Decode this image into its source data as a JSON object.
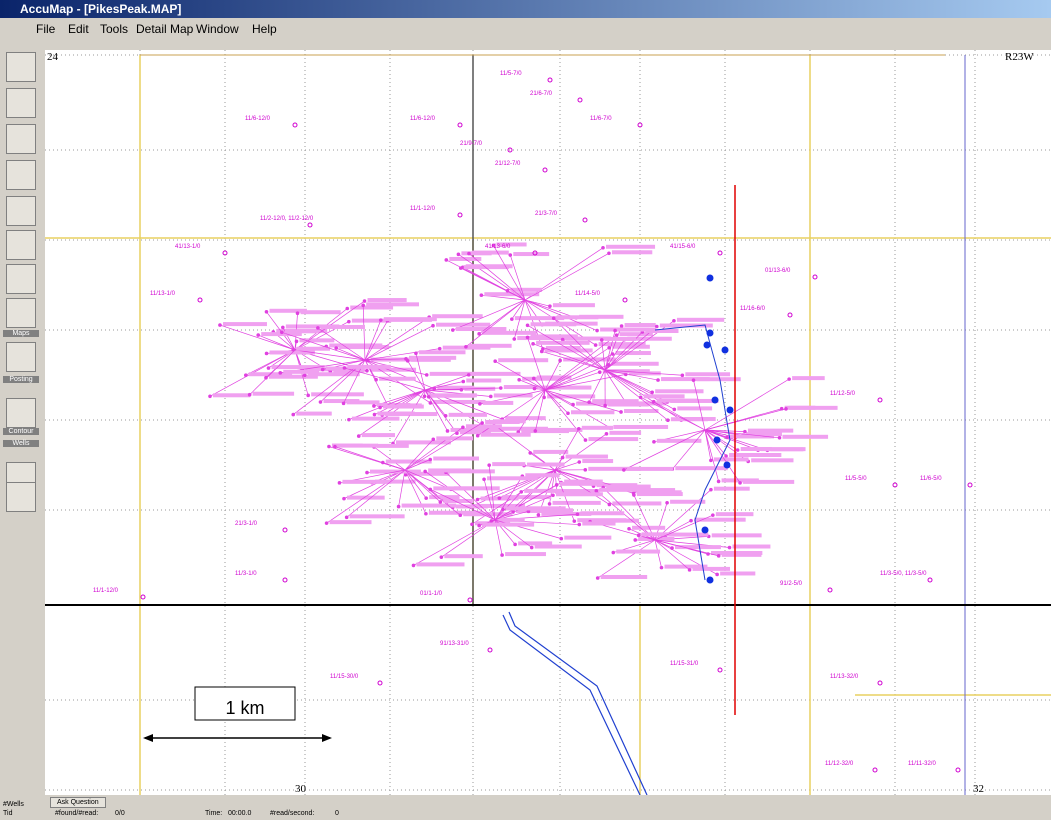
{
  "window": {
    "title": "AccuMap - [PikesPeak.MAP]"
  },
  "menu": [
    "File",
    "Edit",
    "Tools",
    "Detail Map",
    "Window",
    "Help"
  ],
  "toolbar": {
    "labels": [
      "Maps",
      "Posting",
      "Wells",
      "Contour"
    ]
  },
  "map": {
    "corner_labels": [
      "24",
      "R23W",
      "30",
      "32"
    ],
    "well_labels": [
      "11/5-7/0",
      "21/6-7/0",
      "11/6-12/0",
      "11/6-12/0",
      "11/6-7/0",
      "21/9-7/0",
      "21/12-7/0",
      "11/1-12/0",
      "11/2-12/0, 11/2-12/0",
      "21/3-7/0",
      "41/13-1/0",
      "41/13-6/0",
      "41/15-6/0",
      "01/13-6/0",
      "11/13-1/0",
      "11/14-5/0",
      "11/16-6/0",
      "11/12-5/0",
      "11/5-5/0",
      "11/6-5/0",
      "21/3-1/0",
      "11/3-1/0",
      "11/1-12/0",
      "01/1-1/0",
      "11/15-30/0",
      "91/13-31/0",
      "11/15-31/0",
      "11/13-32/0",
      "11/12-32/0",
      "11/11-32/0",
      "11/3-5/0, 11/3-5/0",
      "91/2-5/0"
    ],
    "scale_bar": "1 km"
  },
  "status_bar": {
    "button": "Ask Question",
    "row1": "#Wells",
    "row2": "Tid",
    "found_label": "#found/#read:",
    "found_value": "0/0",
    "time_label": "Time:",
    "time_value": "00:00.0",
    "rate_label": "#read/second:",
    "rate_value": "0"
  }
}
